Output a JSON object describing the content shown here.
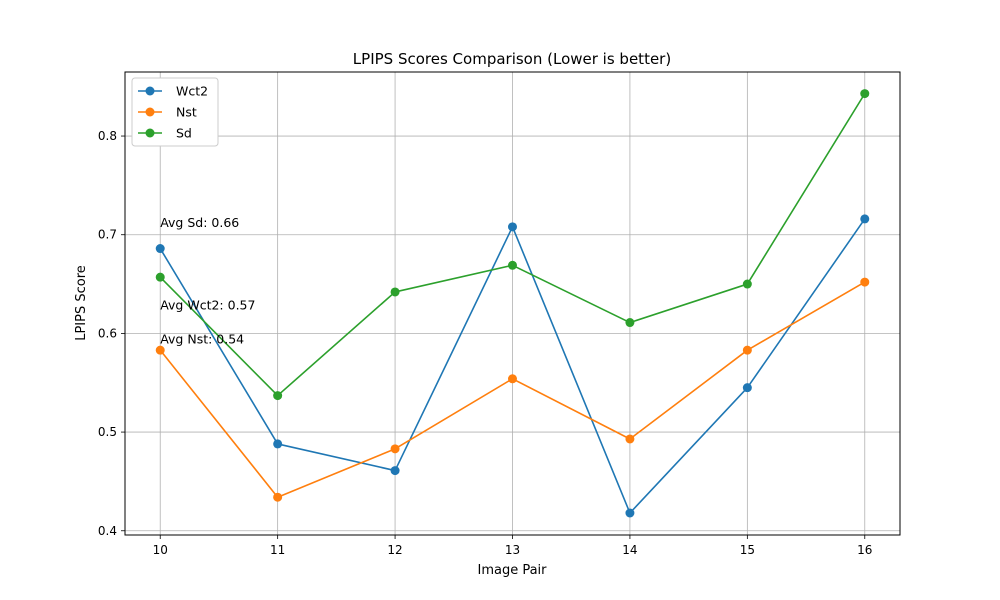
{
  "chart_data": {
    "type": "line",
    "title": "LPIPS Scores Comparison (Lower is better)",
    "xlabel": "Image Pair",
    "ylabel": "LPIPS Score",
    "x": [
      10,
      11,
      12,
      13,
      14,
      15,
      16
    ],
    "xlim": [
      9.7,
      16.3
    ],
    "ylim": [
      0.3957,
      0.8649
    ],
    "y_ticks": [
      "0.4",
      "0.5",
      "0.6",
      "0.7",
      "0.8"
    ],
    "grid": true,
    "legend_position": "top-left",
    "series": [
      {
        "name": "Wct2",
        "color": "#1f77b4",
        "values": [
          0.686,
          0.488,
          0.461,
          0.708,
          0.418,
          0.545,
          0.716
        ]
      },
      {
        "name": "Nst",
        "color": "#ff7f0e",
        "values": [
          0.583,
          0.434,
          0.483,
          0.554,
          0.493,
          0.583,
          0.652
        ]
      },
      {
        "name": "Sd",
        "color": "#2ca02c",
        "values": [
          0.657,
          0.537,
          0.642,
          0.669,
          0.611,
          0.65,
          0.843
        ]
      }
    ],
    "annotations": [
      {
        "text": "Avg Sd: 0.66",
        "x": 10,
        "y": 0.708
      },
      {
        "text": "Avg Wct2: 0.57",
        "x": 10,
        "y": 0.624
      },
      {
        "text": "Avg Nst: 0.54",
        "x": 10,
        "y": 0.59
      }
    ]
  }
}
